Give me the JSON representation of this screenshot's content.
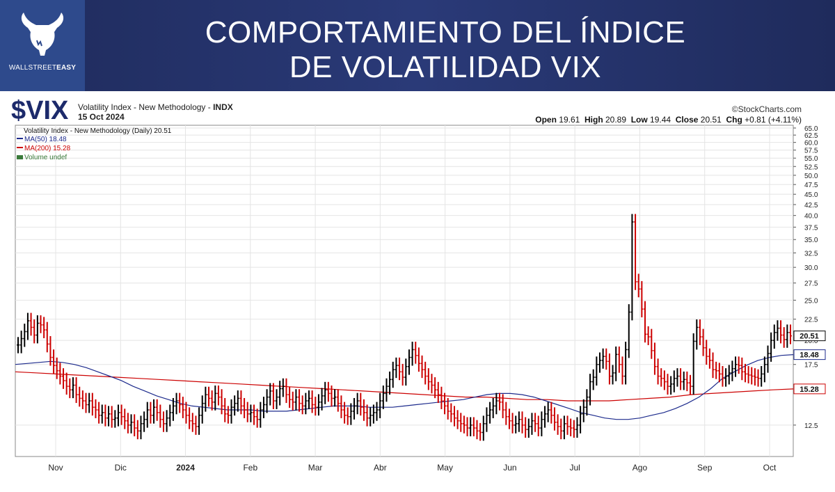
{
  "banner": {
    "logo_text_a": "WALLSTREET",
    "logo_text_b": "EASY",
    "title_line1": "COMPORTAMIENTO DEL ÍNDICE",
    "title_line2": "DE VOLATILIDAD VIX",
    "bg_color": "#26336b"
  },
  "header": {
    "symbol": "$VIX",
    "index_name": "Volatility Index - New Methodology - ",
    "index_exchange": "INDX",
    "date": "15 Oct 2024",
    "brand": "©StockCharts.com",
    "ohlc": {
      "open_label": "Open",
      "open": "19.61",
      "high_label": "High",
      "high": "20.89",
      "low_label": "Low",
      "low": "19.44",
      "close_label": "Close",
      "close": "20.51",
      "chg_label": "Chg",
      "chg": "+0.81 (+4.11%)"
    }
  },
  "legend": {
    "main": "Volatility Index - New Methodology (Daily) 20.51",
    "ma50": "MA(50) 18.48",
    "ma200": "MA(200) 15.28",
    "volume": "Volume undef"
  },
  "chart_data": {
    "type": "line",
    "scale": "log",
    "ylim": [
      10.5,
      66
    ],
    "y_ticks": [
      "65.0",
      "62.5",
      "60.0",
      "57.5",
      "55.0",
      "52.5",
      "50.0",
      "47.5",
      "45.0",
      "42.5",
      "40.0",
      "37.5",
      "35.0",
      "32.5",
      "30.0",
      "27.5",
      "25.0",
      "22.5",
      "20.0",
      "17.5",
      "12.5"
    ],
    "x_ticks": [
      "Nov",
      "Dic",
      "2024",
      "Feb",
      "Mar",
      "Abr",
      "May",
      "Jun",
      "Jul",
      "Ago",
      "Sep",
      "Oct"
    ],
    "markers": {
      "close": "20.51",
      "ma50": "18.48",
      "ma200": "15.28"
    },
    "colors": {
      "up": "#000000",
      "down": "#cc0000",
      "ma50": "#1c2a8c",
      "ma200": "#cc0000"
    },
    "series": [
      {
        "name": "Volatility Index - New Methodology (Daily)",
        "values": [
          19.5,
          20.2,
          21.0,
          22.3,
          21.5,
          20.6,
          22.0,
          21.8,
          21.2,
          19.6,
          18.2,
          17.4,
          16.9,
          16.4,
          16.0,
          15.5,
          15.2,
          15.6,
          14.8,
          14.5,
          14.3,
          14.0,
          14.3,
          13.8,
          13.6,
          13.2,
          13.4,
          13.0,
          13.3,
          12.9,
          13.0,
          13.4,
          13.1,
          12.8,
          12.5,
          12.7,
          12.3,
          12.1,
          12.6,
          12.9,
          13.6,
          13.2,
          13.8,
          13.4,
          12.9,
          12.6,
          13.0,
          13.4,
          13.9,
          14.3,
          14.0,
          13.6,
          13.2,
          12.8,
          12.6,
          12.4,
          13.2,
          14.1,
          14.8,
          14.5,
          14.2,
          14.9,
          14.6,
          13.9,
          13.3,
          13.2,
          13.8,
          14.1,
          14.5,
          13.9,
          13.6,
          13.3,
          13.4,
          13.1,
          12.9,
          13.6,
          14.0,
          14.6,
          15.1,
          14.3,
          14.6,
          15.3,
          15.5,
          14.8,
          14.4,
          14.2,
          14.6,
          14.1,
          13.9,
          14.3,
          14.5,
          14.0,
          13.8,
          14.2,
          14.7,
          15.2,
          14.9,
          14.5,
          14.6,
          14.1,
          13.6,
          13.2,
          13.1,
          13.5,
          13.9,
          14.3,
          13.8,
          13.4,
          13.0,
          13.2,
          13.4,
          13.6,
          14.3,
          14.9,
          15.5,
          16.1,
          17.0,
          17.4,
          16.8,
          16.3,
          17.3,
          18.2,
          19.0,
          18.4,
          17.6,
          17.0,
          16.4,
          15.9,
          15.6,
          15.2,
          14.8,
          14.3,
          13.9,
          13.5,
          13.3,
          13.0,
          12.8,
          12.6,
          12.5,
          12.3,
          12.5,
          12.3,
          12.1,
          12.0,
          12.6,
          13.2,
          13.6,
          13.9,
          14.3,
          14.2,
          13.6,
          13.1,
          12.8,
          12.5,
          12.6,
          12.9,
          12.5,
          12.2,
          12.4,
          12.8,
          12.6,
          12.3,
          12.9,
          13.3,
          13.6,
          13.2,
          12.7,
          12.4,
          12.1,
          12.6,
          12.4,
          12.3,
          12.2,
          12.5,
          13.3,
          13.8,
          14.6,
          15.9,
          16.3,
          17.5,
          17.9,
          18.3,
          17.8,
          16.4,
          16.7,
          18.5,
          17.5,
          16.4,
          19.0,
          23.4,
          38.6,
          27.7,
          26.6,
          23.8,
          20.7,
          20.4,
          18.9,
          17.3,
          16.4,
          16.2,
          15.9,
          15.5,
          15.7,
          16.2,
          16.4,
          15.9,
          16.1,
          15.8,
          15.5,
          19.9,
          21.5,
          20.4,
          19.2,
          18.3,
          17.9,
          17.0,
          16.9,
          16.6,
          16.2,
          16.4,
          16.7,
          17.1,
          17.5,
          17.4,
          16.8,
          16.6,
          16.5,
          16.4,
          16.3,
          16.2,
          16.6,
          17.5,
          18.6,
          20.0,
          20.9,
          21.4,
          20.6,
          20.1,
          20.9,
          20.51
        ]
      },
      {
        "name": "MA(50)",
        "values": [
          17.5,
          17.6,
          17.7,
          17.8,
          17.7,
          17.5,
          17.2,
          16.8,
          16.4,
          16.0,
          15.5,
          15.1,
          14.7,
          14.4,
          14.1,
          13.9,
          13.8,
          13.7,
          13.6,
          13.6,
          13.6,
          13.5,
          13.5,
          13.5,
          13.6,
          13.7,
          13.8,
          13.9,
          13.9,
          13.9,
          13.8,
          13.8,
          13.8,
          13.9,
          14.0,
          14.1,
          14.2,
          14.3,
          14.4,
          14.6,
          14.8,
          14.9,
          14.9,
          14.8,
          14.6,
          14.3,
          14.0,
          13.7,
          13.4,
          13.2,
          13.0,
          12.9,
          12.9,
          13.0,
          13.2,
          13.4,
          13.7,
          14.1,
          14.6,
          15.3,
          16.2,
          16.8,
          17.4,
          17.9,
          18.2,
          18.4,
          18.48
        ]
      },
      {
        "name": "MA(200)",
        "values": [
          16.8,
          16.7,
          16.6,
          16.5,
          16.4,
          16.3,
          16.2,
          16.1,
          16.0,
          15.9,
          15.8,
          15.7,
          15.6,
          15.5,
          15.4,
          15.3,
          15.2,
          15.1,
          15.0,
          14.9,
          14.8,
          14.7,
          14.6,
          14.6,
          14.5,
          14.4,
          14.4,
          14.3,
          14.3,
          14.3,
          14.4,
          14.5,
          14.6,
          14.8,
          14.9,
          15.0,
          15.1,
          15.2,
          15.28
        ]
      }
    ]
  }
}
